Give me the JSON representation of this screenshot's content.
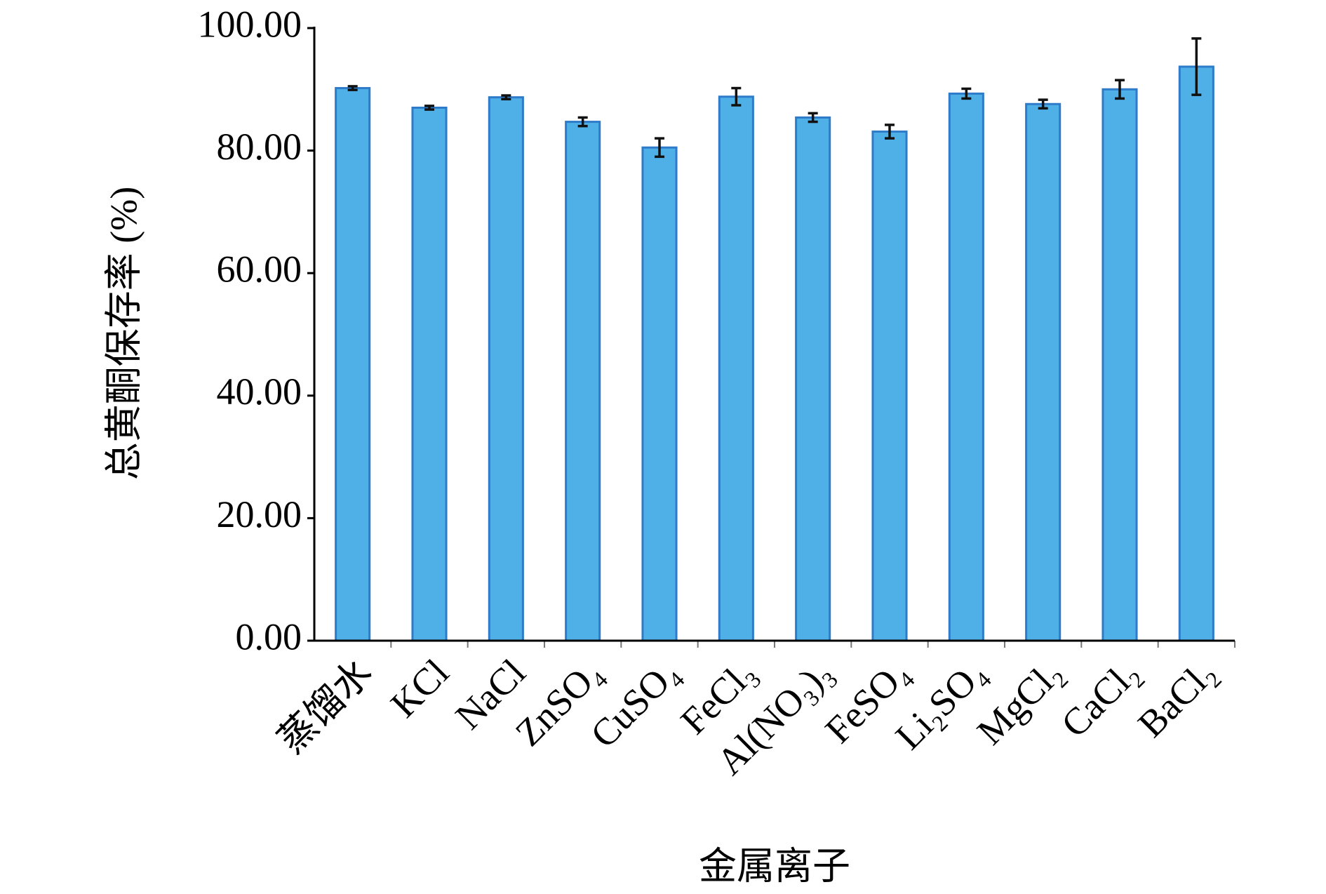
{
  "chart_data": {
    "type": "bar",
    "y_label": "总黄酮保存率 (%)",
    "x_label": "金属离子",
    "categories": [
      "蒸馏水",
      "KCl",
      "NaCl",
      "ZnSO₄",
      "CuSO₄",
      "FeCl₃",
      "Al(NO₃)₃",
      "FeSO₄",
      "Li₂SO₄",
      "MgCl₂",
      "CaCl₂",
      "BaCl₂"
    ],
    "values": [
      90.2,
      87.0,
      88.7,
      84.7,
      80.5,
      88.8,
      85.4,
      83.1,
      89.3,
      87.6,
      90.0,
      93.7
    ],
    "errors": [
      0.3,
      0.3,
      0.3,
      0.7,
      1.5,
      1.4,
      0.7,
      1.1,
      0.8,
      0.7,
      1.5,
      4.6
    ],
    "color": "#4fb0e8",
    "ylim": [
      0,
      100
    ],
    "yticks": [
      {
        "value": 0,
        "label": "0.00"
      },
      {
        "value": 20,
        "label": "20.00"
      },
      {
        "value": 40,
        "label": "40.00"
      },
      {
        "value": 60,
        "label": "60.00"
      },
      {
        "value": 80,
        "label": "80.00"
      },
      {
        "value": 100,
        "label": "100.00"
      }
    ]
  }
}
